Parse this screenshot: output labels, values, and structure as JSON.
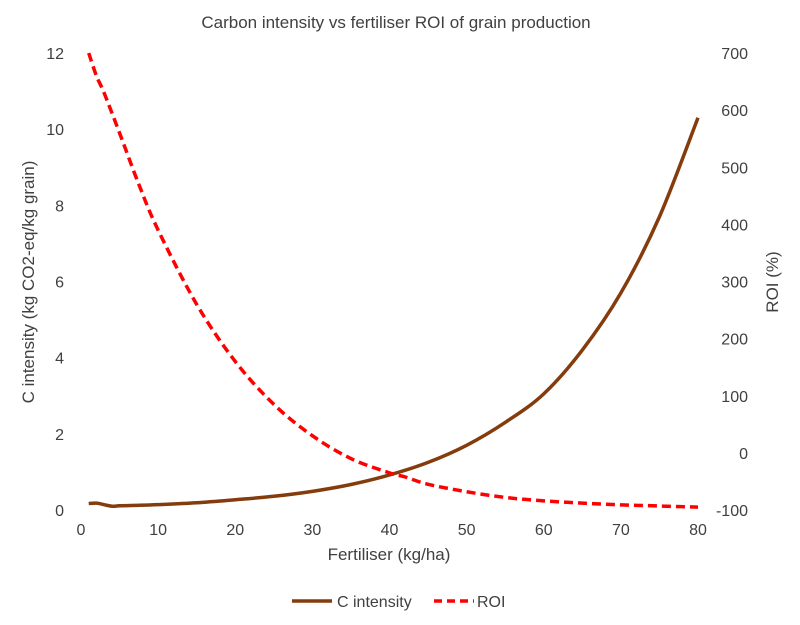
{
  "chart_data": {
    "type": "line",
    "title": "Carbon intensity vs fertiliser ROI of grain production",
    "xlabel": "Fertiliser (kg/ha)",
    "ylabel_left": "C intensity (kg CO2-eq/kg grain)",
    "ylabel_right": "ROI (%)",
    "xlim": [
      0,
      80
    ],
    "ylim_left": [
      0,
      12
    ],
    "ylim_right": [
      -100,
      700
    ],
    "x_ticks": [
      "0",
      "10",
      "20",
      "30",
      "40",
      "50",
      "60",
      "70",
      "80"
    ],
    "y_left_ticks": [
      "0",
      "2",
      "4",
      "6",
      "8",
      "10",
      "12"
    ],
    "y_right_ticks": [
      "-100",
      "0",
      "100",
      "200",
      "300",
      "400",
      "500",
      "600",
      "700"
    ],
    "grid": false,
    "legend_position": "bottom",
    "colors": {
      "c_intensity": "#843C0C",
      "roi": "#FF0000"
    },
    "series": [
      {
        "name": "C intensity",
        "axis": "left",
        "style": "solid",
        "x": [
          1,
          2,
          3,
          4,
          5,
          7,
          10,
          15,
          20,
          25,
          30,
          35,
          40,
          45,
          50,
          55,
          60,
          65,
          70,
          75,
          80
        ],
        "values": [
          0.17,
          0.18,
          0.14,
          0.1,
          0.11,
          0.12,
          0.14,
          0.19,
          0.27,
          0.36,
          0.49,
          0.67,
          0.92,
          1.25,
          1.7,
          2.3,
          3.05,
          4.2,
          5.7,
          7.7,
          10.3
        ]
      },
      {
        "name": "ROI",
        "axis": "right",
        "style": "dashed",
        "x": [
          1,
          2,
          3,
          5,
          7.5,
          10,
          15,
          20,
          25,
          30,
          35,
          40,
          42,
          45,
          50,
          55,
          60,
          65,
          70,
          75,
          80
        ],
        "values": [
          700,
          660,
          630,
          560,
          470,
          390,
          260,
          160,
          85,
          30,
          -10,
          -35,
          -42,
          -55,
          -68,
          -78,
          -84,
          -88,
          -91,
          -93,
          -95
        ]
      }
    ]
  }
}
